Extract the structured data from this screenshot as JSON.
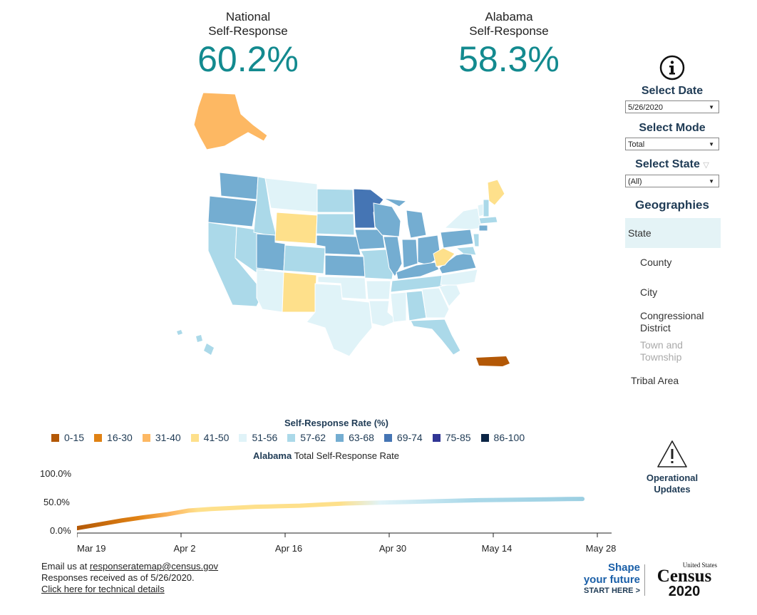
{
  "kpis": {
    "national": {
      "label_line1": "National",
      "label_line2": "Self-Response",
      "value": "60.2%"
    },
    "state": {
      "label_line1": "Alabama",
      "label_line2": "Self-Response",
      "value": "58.3%"
    }
  },
  "controls": {
    "select_date": {
      "label": "Select Date",
      "value": "5/26/2020"
    },
    "select_mode": {
      "label": "Select Mode",
      "value": "Total"
    },
    "select_state": {
      "label": "Select State",
      "value": "(All)"
    }
  },
  "geographies": {
    "title": "Geographies",
    "items": [
      "State",
      "County",
      "City",
      "Congressional District",
      "Town and Township",
      "Tribal Area"
    ],
    "selected": "State"
  },
  "legend": {
    "title": "Self-Response Rate (%)",
    "items": [
      {
        "label": "0-15",
        "color": "#b35806"
      },
      {
        "label": "16-30",
        "color": "#e08214"
      },
      {
        "label": "31-40",
        "color": "#fdb863"
      },
      {
        "label": "41-50",
        "color": "#fee08b"
      },
      {
        "label": "51-56",
        "color": "#e0f3f8"
      },
      {
        "label": "57-62",
        "color": "#abd9e9"
      },
      {
        "label": "63-68",
        "color": "#74add1"
      },
      {
        "label": "69-74",
        "color": "#4575b4"
      },
      {
        "label": "75-85",
        "color": "#313695"
      },
      {
        "label": "86-100",
        "color": "#0b2545"
      }
    ]
  },
  "chart_data": {
    "type": "line",
    "title_bold": "Alabama",
    "title_rest": " Total Self-Response Rate",
    "y_ticks": [
      "100.0%",
      "50.0%",
      "0.0%"
    ],
    "x_ticks": [
      "Mar 19",
      "Apr 2",
      "Apr 16",
      "Apr 30",
      "May 14",
      "May 28"
    ],
    "ylim": [
      0,
      100
    ],
    "x_domain_days": [
      0,
      70
    ],
    "series": [
      {
        "x": [
          0,
          3,
          6,
          9,
          12,
          15,
          18,
          21,
          24,
          27,
          30,
          33,
          36,
          39,
          42,
          45,
          48,
          51,
          54,
          57,
          60,
          63,
          66,
          68
        ],
        "y": [
          5,
          12,
          19,
          25,
          30,
          37,
          40,
          42,
          44,
          45,
          46,
          48,
          50,
          51,
          52,
          53,
          54,
          55,
          56,
          56.5,
          57,
          57.5,
          58,
          58.3
        ]
      }
    ]
  },
  "operational": {
    "line1": "Operational",
    "line2": "Updates"
  },
  "footer": {
    "email_prefix": "Email us at ",
    "email": "responseratemap@census.gov",
    "received": "Responses received as of 5/26/2020.",
    "technical": "Click here for technical details"
  },
  "census_logo": {
    "shape1": "Shape",
    "shape2": "your future",
    "shape3": "START HERE >",
    "us": "United States",
    "census": "Census",
    "year": "2020"
  }
}
